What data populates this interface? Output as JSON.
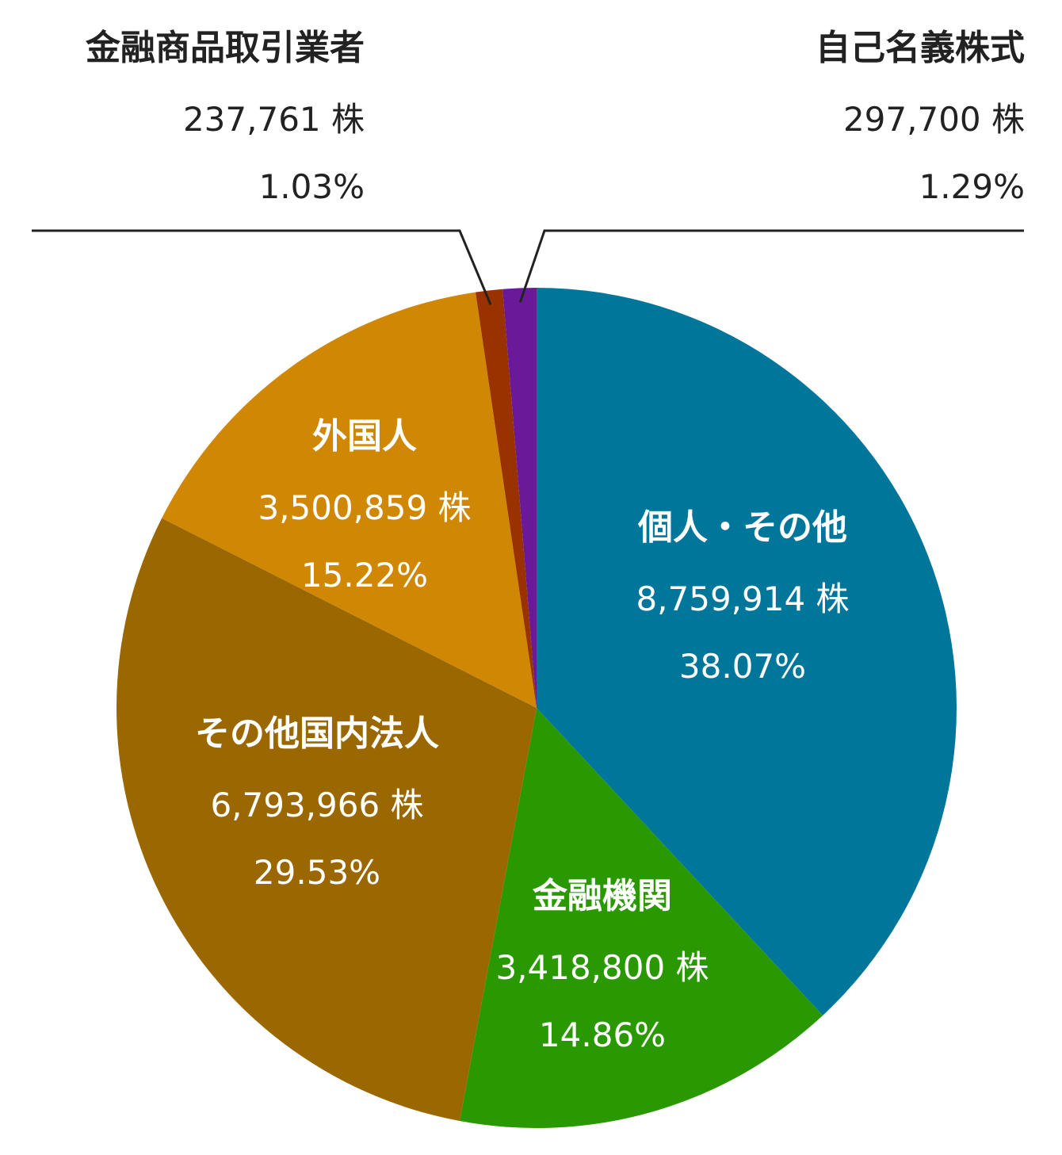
{
  "chart_data": {
    "type": "pie",
    "unit": "株",
    "start_angle_deg": 0,
    "direction": "clockwise",
    "title": "",
    "slices": [
      {
        "name": "個人・その他",
        "shares": "8,759,914 株",
        "percent_label": "38.07%",
        "value": 38.07,
        "color": "#00779a",
        "label_color": "#ffffff",
        "label_position": "inside"
      },
      {
        "name": "金融機関",
        "shares": "3,418,800 株",
        "percent_label": "14.86%",
        "value": 14.86,
        "color": "#2a9800",
        "label_color": "#ffffff",
        "label_position": "inside"
      },
      {
        "name": "その他国内法人",
        "shares": "6,793,966 株",
        "percent_label": "29.53%",
        "value": 29.53,
        "color": "#9a6700",
        "label_color": "#ffffff",
        "label_position": "inside"
      },
      {
        "name": "外国人",
        "shares": "3,500,859 株",
        "percent_label": "15.22%",
        "value": 15.22,
        "color": "#d08804",
        "label_color": "#ffffff",
        "label_position": "inside"
      },
      {
        "name": "金融商品取引業者",
        "shares": "237,761 株",
        "percent_label": "1.03%",
        "value": 1.03,
        "color": "#9a3200",
        "label_color": "#222222",
        "label_position": "outside-top-left"
      },
      {
        "name": "自己名義株式",
        "shares": "297,700 株",
        "percent_label": "1.29%",
        "value": 1.29,
        "color": "#6a1a99",
        "label_color": "#222222",
        "label_position": "outside-top-right"
      }
    ]
  }
}
